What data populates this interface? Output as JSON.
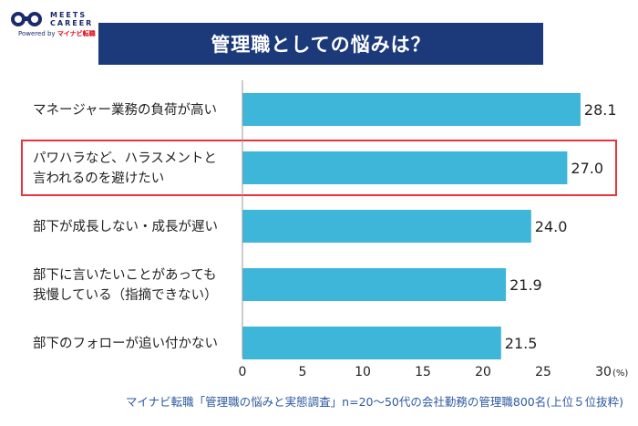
{
  "brand": {
    "name_line1": "MEETS",
    "name_line2": "CAREER",
    "powered_by": "Powered by",
    "partner": "マイナビ転職"
  },
  "title": "管理職としての悩みは？",
  "footer": "マイナビ転職「管理職の悩みと実態調査」n=20〜50代の会社勤務の管理職800名(上位５位抜粋)",
  "colors": {
    "bar": "#3db6d9",
    "title_bg": "#1c3a7a",
    "highlight": "#e8343a"
  },
  "chart_data": {
    "type": "bar",
    "orientation": "horizontal",
    "categories": [
      [
        "マネージャー業務の負荷が高い"
      ],
      [
        "パワハラなど、ハラスメントと",
        "言われるのを避けたい"
      ],
      [
        "部下が成長しない・成長が遅い"
      ],
      [
        "部下に言いたいことがあっても",
        "我慢している（指摘できない）"
      ],
      [
        "部下のフォローが追い付かない"
      ]
    ],
    "values": [
      28.1,
      27.0,
      24.0,
      21.9,
      21.5
    ],
    "value_labels": [
      "28.1",
      "27.0",
      "24.0",
      "21.9",
      "21.5"
    ],
    "xlim": [
      0,
      30
    ],
    "xticks": [
      "0",
      "5",
      "10",
      "15",
      "20",
      "25",
      "30"
    ],
    "unit": "(%)",
    "highlighted_index": 1,
    "grid": false
  }
}
